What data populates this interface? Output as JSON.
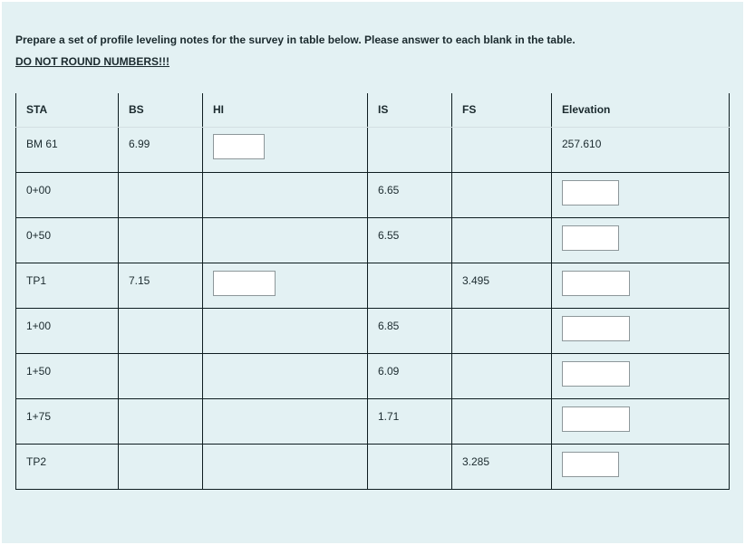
{
  "instructions": "Prepare a set of profile leveling notes for the survey in table below. Please answer to each blank in the table.",
  "warning": "DO NOT ROUND NUMBERS!!!",
  "columns": [
    "STA",
    "BS",
    "HI",
    "IS",
    "FS",
    "Elevation"
  ],
  "rows": [
    {
      "sta": "BM 61",
      "bs": "6.99",
      "hi": "",
      "is": "",
      "fs": "",
      "elev": "257.610"
    },
    {
      "sta": "0+00",
      "bs": "",
      "hi": "",
      "is": "6.65",
      "fs": "",
      "elev": ""
    },
    {
      "sta": "0+50",
      "bs": "",
      "hi": "",
      "is": "6.55",
      "fs": "",
      "elev": ""
    },
    {
      "sta": "TP1",
      "bs": "7.15",
      "hi": "",
      "is": "",
      "fs": "3.495",
      "elev": ""
    },
    {
      "sta": "1+00",
      "bs": "",
      "hi": "",
      "is": "6.85",
      "fs": "",
      "elev": ""
    },
    {
      "sta": "1+50",
      "bs": "",
      "hi": "",
      "is": "6.09",
      "fs": "",
      "elev": ""
    },
    {
      "sta": "1+75",
      "bs": "",
      "hi": "",
      "is": "1.71",
      "fs": "",
      "elev": ""
    },
    {
      "sta": "TP2",
      "bs": "",
      "hi": "",
      "is": "",
      "fs": "3.285",
      "elev": ""
    }
  ]
}
